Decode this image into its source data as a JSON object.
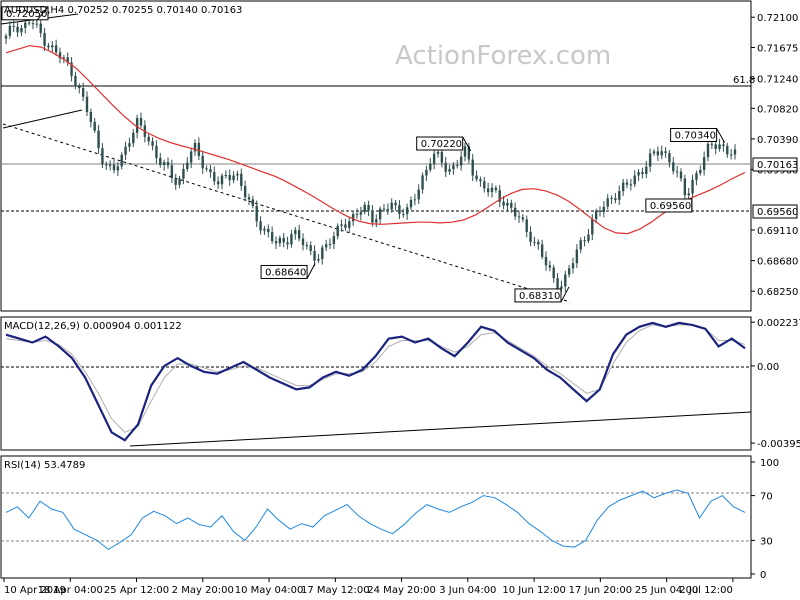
{
  "header": {
    "price_title": "AUDUSD,H4  0.70252 0.70255 0.70140 0.70163",
    "macd_title": "MACD(12,26,9) 0.000904 0.001122",
    "rsi_title": "RSI(14) 53.4789",
    "watermark": "ActionForex.com"
  },
  "colors": {
    "candle": "#2f4f4f",
    "ma": "#e03030",
    "macd_line": "#1a237e",
    "macd_signal": "#b0b0b0",
    "rsi": "#1e88e5",
    "grid": "#000000"
  },
  "chart_data": [
    {
      "type": "candlestick",
      "title": "AUDUSD,H4",
      "ohlc_last": {
        "open": 0.70252,
        "high": 0.70255,
        "low": 0.7014,
        "close": 0.70163
      },
      "ylim": [
        0.68,
        0.723
      ],
      "y_ticks": [
        "0.72100",
        "0.71675",
        "0.71240",
        "0.70820",
        "0.70390",
        "0.69960",
        "0.69110",
        "0.68680",
        "0.68250"
      ],
      "x_ticks": [
        "10 Apr 2019",
        "18 Apr 04:00",
        "25 Apr 12:00",
        "2 May 20:00",
        "10 May 04:00",
        "17 May 12:00",
        "24 May 20:00",
        "3 Jun 04:00",
        "10 Jun 12:00",
        "17 Jun 20:00",
        "25 Jun 04:00",
        "2 Jul 12:00"
      ],
      "current_price": "0.70163",
      "support_label": "0.69560",
      "fib_label": "61.8",
      "fib_level": 0.7118,
      "support_level": 0.6956,
      "price_path": [
        0.718,
        0.72,
        0.7195,
        0.7205,
        0.719,
        0.7175,
        0.716,
        0.715,
        0.7135,
        0.7105,
        0.7075,
        0.704,
        0.7005,
        0.699,
        0.701,
        0.704,
        0.706,
        0.7045,
        0.7025,
        0.7005,
        0.699,
        0.6975,
        0.701,
        0.7025,
        0.7005,
        0.699,
        0.6975,
        0.6985,
        0.6995,
        0.6965,
        0.694,
        0.692,
        0.6905,
        0.689,
        0.6895,
        0.691,
        0.6895,
        0.688,
        0.6875,
        0.6885,
        0.69,
        0.6925,
        0.692,
        0.6935,
        0.6945,
        0.6925,
        0.6935,
        0.695,
        0.694,
        0.6935,
        0.696,
        0.699,
        0.7015,
        0.701,
        0.6995,
        0.7005,
        0.702,
        0.6995,
        0.6975,
        0.6965,
        0.696,
        0.695,
        0.6935,
        0.692,
        0.6905,
        0.6885,
        0.686,
        0.684,
        0.6835,
        0.686,
        0.689,
        0.691,
        0.693,
        0.6945,
        0.696,
        0.6965,
        0.6975,
        0.699,
        0.7,
        0.7015,
        0.7025,
        0.701,
        0.6985,
        0.696,
        0.6985,
        0.7005,
        0.703,
        0.7035,
        0.702,
        0.7016
      ],
      "ma_path": [
        0.716,
        0.7165,
        0.717,
        0.7168,
        0.716,
        0.715,
        0.7138,
        0.7122,
        0.7105,
        0.7088,
        0.7072,
        0.7058,
        0.7048,
        0.704,
        0.7034,
        0.7029,
        0.7025,
        0.702,
        0.7015,
        0.701,
        0.7004,
        0.6998,
        0.6992,
        0.6986,
        0.6978,
        0.6969,
        0.696,
        0.695,
        0.694,
        0.6931,
        0.6924,
        0.692,
        0.6919,
        0.692,
        0.6921,
        0.6922,
        0.6922,
        0.6921,
        0.6922,
        0.6925,
        0.6932,
        0.6942,
        0.6953,
        0.6962,
        0.6968,
        0.6969,
        0.6966,
        0.696,
        0.6951,
        0.6939,
        0.6926,
        0.6914,
        0.6907,
        0.6906,
        0.6912,
        0.6922,
        0.6934,
        0.6944,
        0.6953,
        0.696,
        0.6967,
        0.6975,
        0.6984,
        0.6992
      ],
      "annotations": [
        {
          "label": "0.72050",
          "x_index": 3,
          "value": 0.7205
        },
        {
          "label": "0.68640",
          "x_index": 37,
          "value": 0.6864
        },
        {
          "label": "0.70220",
          "x_index": 56,
          "value": 0.7022
        },
        {
          "label": "0.68310",
          "x_index": 68,
          "value": 0.6831
        },
        {
          "label": "0.70340",
          "x_index": 87,
          "value": 0.7034
        },
        {
          "label": "0.69560",
          "x_index": 83,
          "value": 0.6956
        }
      ]
    },
    {
      "type": "line",
      "title": "MACD(12,26,9)",
      "values_last": {
        "macd": 0.000904,
        "signal": 0.001122
      },
      "ylim": [
        -0.0042,
        0.00235
      ],
      "y_ticks": [
        "0.002237",
        "0.00",
        "-0.00395"
      ],
      "macd_path": [
        0.0016,
        0.0014,
        0.0012,
        0.0015,
        0.001,
        0.0004,
        -0.0006,
        -0.002,
        -0.0034,
        -0.0038,
        -0.003,
        -0.001,
        0.0,
        0.0004,
        0.0,
        -0.0003,
        -0.0004,
        -0.0001,
        0.0002,
        -0.0002,
        -0.0006,
        -0.0009,
        -0.0012,
        -0.0011,
        -0.0006,
        -0.0003,
        -0.0005,
        -0.0002,
        0.0005,
        0.0014,
        0.0015,
        0.0012,
        0.0014,
        0.0009,
        0.0005,
        0.0012,
        0.002,
        0.0018,
        0.0012,
        0.0008,
        0.0004,
        -0.0002,
        -0.0006,
        -0.0012,
        -0.0018,
        -0.0012,
        0.0006,
        0.0016,
        0.002,
        0.0022,
        0.002,
        0.0022,
        0.0021,
        0.0019,
        0.001,
        0.0014,
        0.0009
      ],
      "signal_path": [
        0.0014,
        0.0013,
        0.0012,
        0.0013,
        0.0011,
        0.0006,
        -0.0003,
        -0.0014,
        -0.0027,
        -0.0034,
        -0.0031,
        -0.0018,
        -0.0006,
        0.0001,
        0.0001,
        -0.0001,
        -0.0003,
        -0.0002,
        0.0,
        -0.0001,
        -0.0004,
        -0.0007,
        -0.001,
        -0.001,
        -0.0007,
        -0.0004,
        -0.0004,
        -0.0003,
        0.0002,
        0.001,
        0.0013,
        0.0013,
        0.0013,
        0.001,
        0.0007,
        0.001,
        0.0016,
        0.0017,
        0.0013,
        0.0009,
        0.0005,
        0.0,
        -0.0004,
        -0.0009,
        -0.0014,
        -0.0012,
        0.0001,
        0.0012,
        0.0018,
        0.0021,
        0.002,
        0.0021,
        0.0021,
        0.0019,
        0.0013,
        0.0013,
        0.0011
      ]
    },
    {
      "type": "line",
      "title": "RSI(14)",
      "value_last": 53.4789,
      "ylim": [
        0,
        100
      ],
      "y_ticks": [
        "100",
        "70",
        "30",
        "0"
      ],
      "levels": [
        70,
        30
      ],
      "rsi_path": [
        55,
        60,
        50,
        65,
        58,
        55,
        40,
        35,
        30,
        22,
        28,
        35,
        50,
        56,
        52,
        45,
        50,
        44,
        42,
        52,
        38,
        30,
        42,
        58,
        48,
        40,
        45,
        42,
        52,
        57,
        62,
        52,
        45,
        40,
        36,
        44,
        54,
        62,
        58,
        55,
        60,
        64,
        70,
        68,
        62,
        55,
        45,
        38,
        30,
        25,
        24,
        30,
        48,
        60,
        66,
        70,
        74,
        68,
        72,
        75,
        72,
        50,
        65,
        70,
        60,
        55
      ]
    }
  ]
}
